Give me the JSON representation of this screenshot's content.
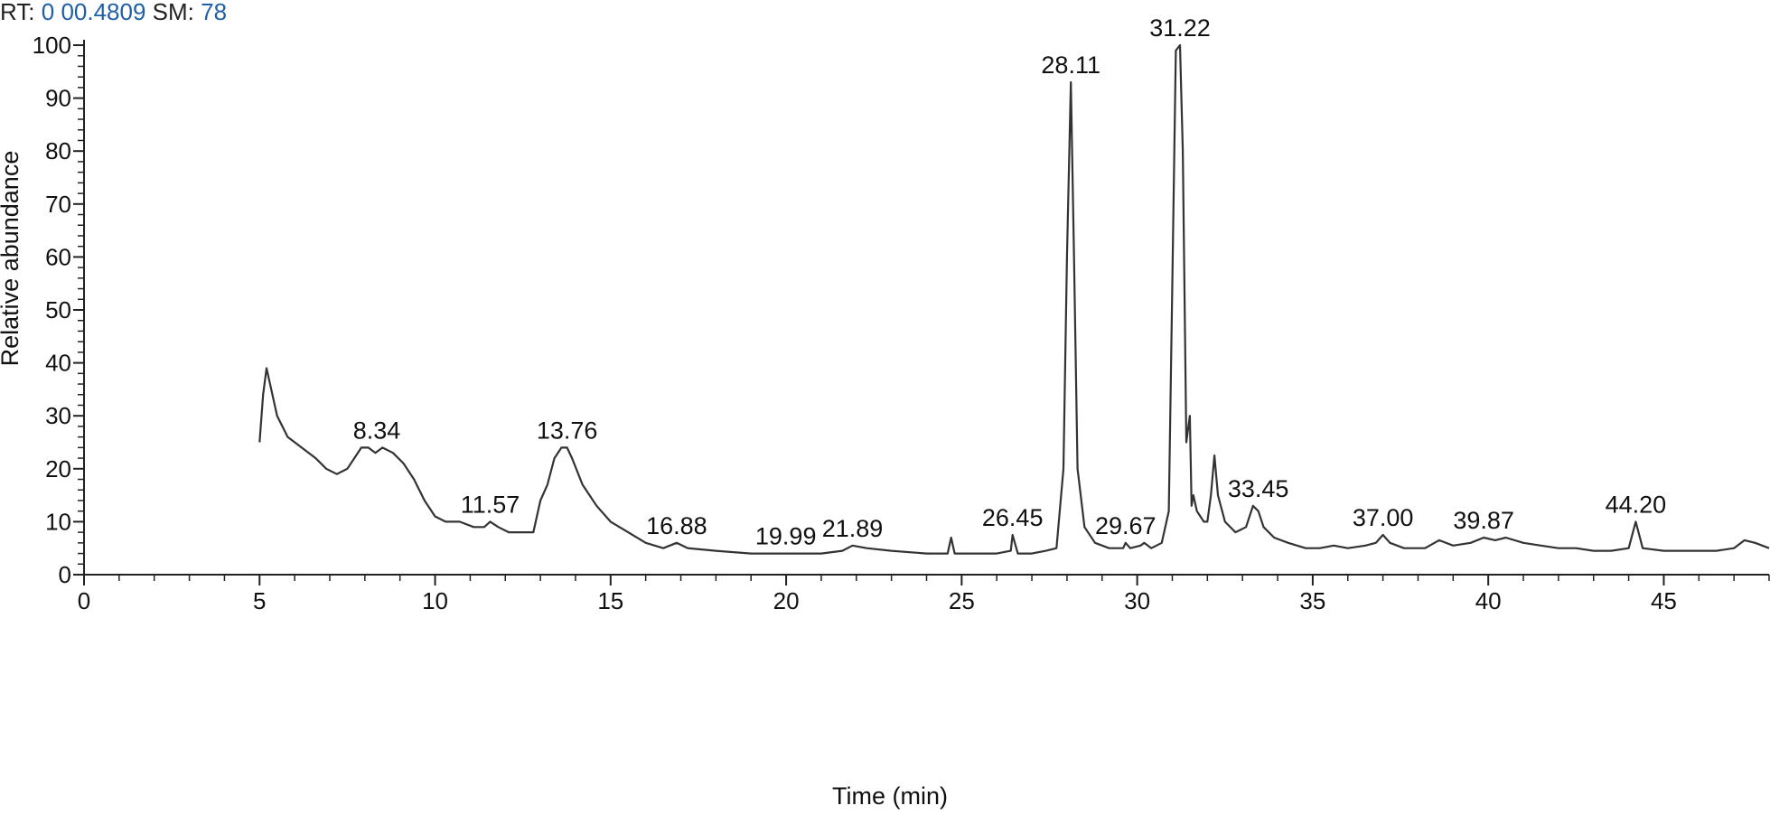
{
  "header": {
    "rt_label": "RT:",
    "rt_value": "0 00.4809",
    "sm_label": "SM:",
    "sm_value": "78",
    "value_color": "#1f5fa6"
  },
  "chart_data": {
    "type": "line",
    "xlabel": "Time (min)",
    "ylabel": "Relative abundance",
    "xlim": [
      0,
      48
    ],
    "ylim": [
      0,
      100
    ],
    "x_ticks": [
      0,
      5,
      10,
      15,
      20,
      25,
      30,
      35,
      40,
      45
    ],
    "y_ticks": [
      0,
      10,
      20,
      30,
      40,
      50,
      60,
      70,
      80,
      90,
      100
    ],
    "grid": false,
    "line_color": "#333333",
    "series": [
      {
        "x": [
          5.0,
          5.1,
          5.2,
          5.3,
          5.5,
          5.8,
          6.2,
          6.6,
          6.9,
          7.2,
          7.5,
          7.7,
          7.9,
          8.1,
          8.3,
          8.5,
          8.8,
          9.1,
          9.4,
          9.7,
          10.0,
          10.3,
          10.7,
          11.1,
          11.4,
          11.57,
          11.8,
          12.1,
          12.4,
          12.8,
          13.0,
          13.2,
          13.4,
          13.6,
          13.76,
          13.9,
          14.2,
          14.6,
          15.0,
          15.5,
          16.0,
          16.5,
          16.88,
          17.2,
          18.0,
          19.0,
          19.99,
          20.5,
          21.0,
          21.6,
          21.89,
          22.3,
          23.0,
          24.0,
          24.6,
          24.7,
          24.8,
          25.5,
          26.0,
          26.4,
          26.45,
          26.6,
          27.0,
          27.4,
          27.7,
          27.9,
          28.0,
          28.11,
          28.2,
          28.3,
          28.5,
          28.8,
          29.2,
          29.6,
          29.67,
          29.8,
          30.1,
          30.2,
          30.4,
          30.7,
          30.9,
          31.0,
          31.1,
          31.22,
          31.3,
          31.4,
          31.5,
          31.55,
          31.6,
          31.7,
          31.9,
          32.0,
          32.1,
          32.2,
          32.3,
          32.5,
          32.8,
          33.1,
          33.3,
          33.45,
          33.6,
          33.9,
          34.3,
          34.8,
          35.2,
          35.6,
          36.0,
          36.5,
          36.8,
          37.0,
          37.2,
          37.6,
          38.2,
          38.6,
          39.0,
          39.5,
          39.87,
          40.2,
          40.5,
          41.0,
          41.5,
          42.0,
          42.5,
          43.0,
          43.5,
          44.0,
          44.2,
          44.4,
          45.0,
          46.0,
          46.5,
          47.0,
          47.3,
          47.6,
          48.0
        ],
        "y": [
          25,
          34,
          39,
          36,
          30,
          26,
          24,
          22,
          20,
          19,
          20,
          22,
          24,
          24,
          23,
          24,
          23,
          21,
          18,
          14,
          11,
          10,
          10,
          9,
          9,
          10,
          9,
          8,
          8,
          8,
          14,
          17,
          22,
          24,
          24,
          22,
          17,
          13,
          10,
          8,
          6,
          5,
          6,
          5,
          4.5,
          4,
          4,
          4,
          4,
          4.5,
          5.5,
          5,
          4.5,
          4,
          4,
          7,
          4,
          4,
          4,
          4.5,
          7.5,
          4,
          4,
          4.5,
          5,
          20,
          60,
          93,
          60,
          20,
          9,
          6,
          5,
          5,
          6,
          5,
          5.5,
          6,
          5,
          6,
          12,
          55,
          99,
          100,
          80,
          25,
          30,
          13,
          15,
          12,
          10,
          10,
          15,
          22.5,
          15,
          10,
          8,
          9,
          13,
          12,
          9,
          7,
          6,
          5,
          5,
          5.5,
          5,
          5.5,
          6,
          7.5,
          6,
          5,
          5,
          6.5,
          5.5,
          6,
          7,
          6.5,
          7,
          6,
          5.5,
          5,
          5,
          4.5,
          4.5,
          5,
          10,
          5,
          4.5,
          4.5,
          4.5,
          5,
          6.5,
          6,
          5
        ]
      }
    ],
    "peak_labels": [
      {
        "text": "8.34",
        "x": 8.34,
        "y": 24
      },
      {
        "text": "11.57",
        "x": 11.57,
        "y": 10
      },
      {
        "text": "13.76",
        "x": 13.76,
        "y": 24
      },
      {
        "text": "16.88",
        "x": 16.88,
        "y": 6
      },
      {
        "text": "19.99",
        "x": 19.99,
        "y": 4
      },
      {
        "text": "21.89",
        "x": 21.89,
        "y": 5.5
      },
      {
        "text": "26.45",
        "x": 26.45,
        "y": 7.5
      },
      {
        "text": "28.11",
        "x": 28.11,
        "y": 93
      },
      {
        "text": "29.67",
        "x": 29.67,
        "y": 6
      },
      {
        "text": "31.22",
        "x": 31.22,
        "y": 100
      },
      {
        "text": "33.45",
        "x": 33.45,
        "y": 13
      },
      {
        "text": "37.00",
        "x": 37.0,
        "y": 7.5
      },
      {
        "text": "39.87",
        "x": 39.87,
        "y": 7
      },
      {
        "text": "44.20",
        "x": 44.2,
        "y": 10
      }
    ]
  }
}
